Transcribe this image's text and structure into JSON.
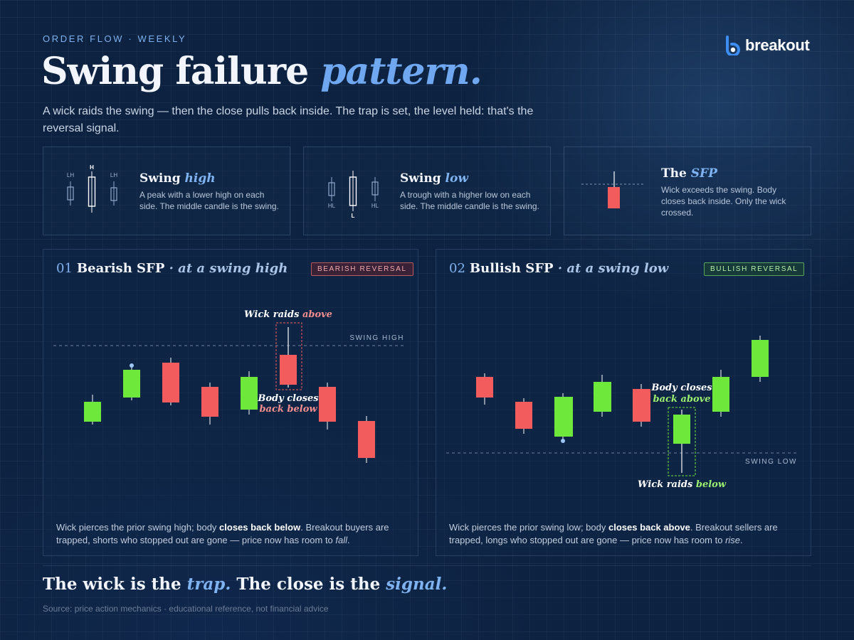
{
  "header": {
    "eyebrow": "ORDER FLOW · WEEKLY",
    "title_main": "Swing failure ",
    "title_em": "pattern.",
    "subtitle": "A wick raids the swing — then the close pulls back inside. The trap is set, the level held: that's the reversal signal.",
    "logo_text": "breakout",
    "logo_icon": "breakout-b-icon"
  },
  "cards": [
    {
      "title": "Swing ",
      "title_em": "high",
      "desc": "A peak with a lower high on each side. The middle candle is the swing.",
      "labels": [
        "LH",
        "H",
        "LH"
      ]
    },
    {
      "title": "Swing ",
      "title_em": "low",
      "desc": "A trough with a higher low on each side. The middle candle is the swing.",
      "labels": [
        "HL",
        "L",
        "HL"
      ]
    },
    {
      "title": "The ",
      "title_em": "SFP",
      "desc": "Wick exceeds the swing. Body closes back inside. Only the wick crossed."
    }
  ],
  "panels": {
    "bearish": {
      "num": "01",
      "title": "Bearish SFP",
      "title_em": "· at a swing high",
      "badge": "BEARISH REVERSAL",
      "level_label": "SWING HIGH",
      "annotation_top_a": "Wick raids ",
      "annotation_top_b": "above",
      "annotation_mid_a": "Body closes",
      "annotation_mid_b": "back below",
      "desc_a": "Wick pierces the prior swing high; body ",
      "desc_b": "closes back below",
      "desc_c": ". Breakout buyers are trapped, shorts who stopped out are gone — price now has room to ",
      "desc_d": "fall",
      "desc_e": "."
    },
    "bullish": {
      "num": "02",
      "title": "Bullish SFP",
      "title_em": "· at a swing low",
      "badge": "BULLISH REVERSAL",
      "level_label": "SWING LOW",
      "annotation_top_a": "Body closes",
      "annotation_top_b": "back above",
      "annotation_bot_a": "Wick raids ",
      "annotation_bot_b": "below",
      "desc_a": "Wick pierces the prior swing low; body ",
      "desc_b": "closes back above",
      "desc_c": ". Breakout sellers are trapped, longs who stopped out are gone — price now has room to ",
      "desc_d": "rise",
      "desc_e": "."
    }
  },
  "footer": {
    "line_a": "The wick is the ",
    "line_b": "trap.",
    "line_c": " The close is the ",
    "line_d": "signal.",
    "source": "Source: price action mechanics · educational reference, not financial advice"
  },
  "colors": {
    "background": "#0d2240",
    "accent": "#6fa8f0",
    "bull": "#6ee83a",
    "bear": "#f25c5c"
  }
}
